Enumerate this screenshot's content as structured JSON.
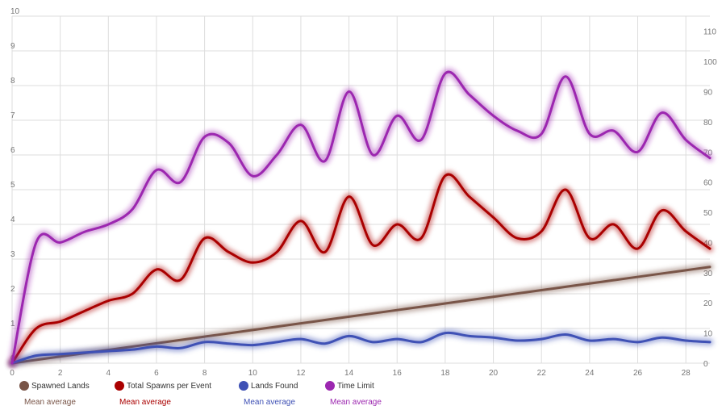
{
  "chart_data": {
    "type": "line",
    "left_axis": {
      "min": 0,
      "max": 10,
      "ticks": [
        0,
        1,
        2,
        3,
        4,
        5,
        6,
        7,
        8,
        9,
        10
      ]
    },
    "right_axis": {
      "min": 0,
      "max": 115,
      "ticks": [
        0,
        10,
        20,
        30,
        40,
        50,
        60,
        70,
        80,
        90,
        100,
        110
      ]
    },
    "x_axis": {
      "min": 0,
      "max": 29,
      "ticks": [
        0,
        2,
        4,
        6,
        8,
        10,
        12,
        14,
        16,
        18,
        20,
        22,
        24,
        26,
        28
      ]
    },
    "grid": true,
    "legend_position": "bottom-left",
    "x": [
      0,
      1,
      2,
      3,
      4,
      5,
      6,
      7,
      8,
      9,
      10,
      11,
      12,
      13,
      14,
      15,
      16,
      17,
      18,
      19,
      20,
      21,
      22,
      23,
      24,
      25,
      26,
      27,
      28,
      29
    ],
    "series": [
      {
        "name": "Spawned Lands",
        "color": "#795548",
        "axis": "right",
        "values": [
          0,
          1.1,
          2.2,
          3.3,
          4.4,
          5.5,
          6.6,
          7.7,
          8.8,
          9.9,
          11,
          12.1,
          13.2,
          14.3,
          15.4,
          16.5,
          17.6,
          18.7,
          19.8,
          20.9,
          22,
          23.1,
          24.2,
          25.3,
          26.4,
          27.5,
          28.6,
          29.7,
          30.8,
          31.9
        ]
      },
      {
        "name": "Total Spawns per Event",
        "color": "#aa0000",
        "axis": "left",
        "values": [
          0,
          1.0,
          1.2,
          1.5,
          1.8,
          2.0,
          2.7,
          2.4,
          3.6,
          3.2,
          2.9,
          3.2,
          4.1,
          3.2,
          4.8,
          3.4,
          4.0,
          3.6,
          5.4,
          4.8,
          4.2,
          3.6,
          3.8,
          5.0,
          3.6,
          4.0,
          3.3,
          4.4,
          3.8,
          3.3
        ]
      },
      {
        "name": "Lands Found",
        "color": "#3f51b5",
        "axis": "right",
        "values": [
          0,
          2.5,
          3,
          3.5,
          4,
          4.5,
          5.5,
          5,
          7,
          6.5,
          6,
          7,
          8,
          6.5,
          9,
          7,
          8,
          7,
          10,
          9,
          8.5,
          7.5,
          8,
          9.5,
          7.5,
          8,
          7,
          8.5,
          7.5,
          7
        ]
      },
      {
        "name": "Time Limit",
        "color": "#9c27b0",
        "axis": "right",
        "values": [
          0,
          40,
          40,
          43.5,
          46,
          51,
          64,
          60,
          75,
          73,
          62,
          69,
          79,
          67,
          90,
          69,
          82,
          74,
          96,
          89,
          82,
          77,
          76,
          95,
          76,
          77,
          70,
          83,
          74,
          68
        ]
      }
    ]
  },
  "legend": [
    {
      "label": "Spawned Lands",
      "mean": "Mean average",
      "color": "#795548",
      "mean_color": "#795548"
    },
    {
      "label": "Total Spawns per Event",
      "mean": "Mean average",
      "color": "#aa0000",
      "mean_color": "#aa0000"
    },
    {
      "label": "Lands Found",
      "mean": "Mean average",
      "color": "#3f51b5",
      "mean_color": "#3f51b5"
    },
    {
      "label": "Time Limit",
      "mean": "Mean average",
      "color": "#9c27b0",
      "mean_color": "#9c27b0"
    }
  ]
}
